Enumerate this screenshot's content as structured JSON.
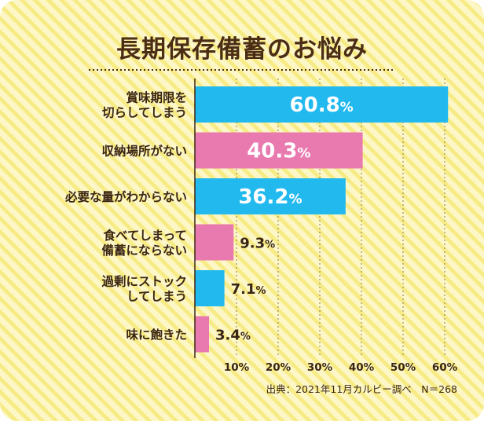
{
  "chart_data": {
    "type": "bar",
    "orientation": "horizontal",
    "title": "長期保存備蓄のお悩み",
    "categories": [
      [
        "賞味期限を",
        "切らしてしまう"
      ],
      [
        "収納場所がない"
      ],
      [
        "必要な量がわからない"
      ],
      [
        "食べてしまって",
        "備蓄にならない"
      ],
      [
        "過剰にストック",
        "してしまう"
      ],
      [
        "味に飽きた"
      ]
    ],
    "values": [
      60.8,
      40.3,
      36.2,
      9.3,
      7.1,
      3.4
    ],
    "value_labels": [
      "60.8",
      "40.3",
      "36.2",
      "9.3",
      "7.1",
      "3.4"
    ],
    "unit": "%",
    "bar_colors": [
      "#22b9ef",
      "#e87ab0",
      "#22b9ef",
      "#e87ab0",
      "#22b9ef",
      "#e87ab0"
    ],
    "xlim": [
      0,
      62
    ],
    "xticks": [
      "10%",
      "20%",
      "30%",
      "40%",
      "50%",
      "60%"
    ],
    "xtick_values": [
      10,
      20,
      30,
      40,
      50,
      60
    ],
    "grid": "vertical dotted",
    "source": "出典：2021年11月カルビー調べ　N＝268"
  }
}
